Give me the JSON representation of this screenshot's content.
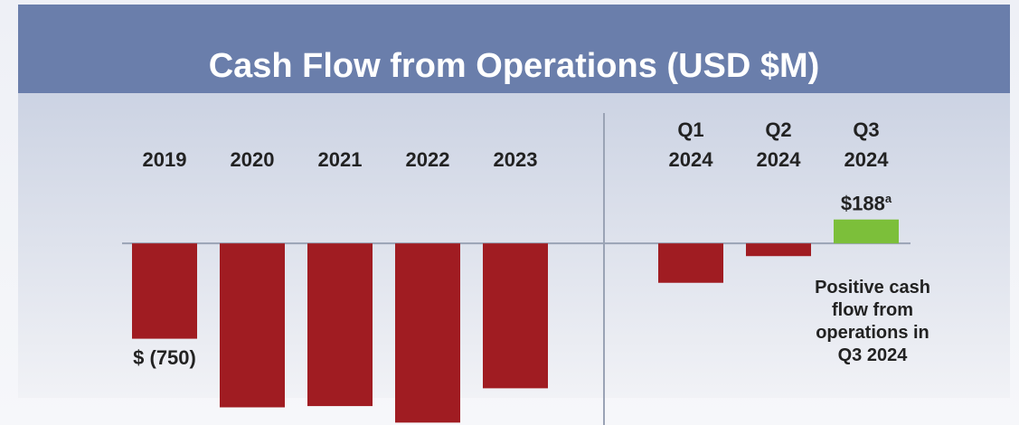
{
  "chart_data": {
    "type": "bar",
    "title": "Cash Flow from Operations (USD $M)",
    "categories": [
      "2019",
      "2020",
      "2021",
      "2022",
      "2023",
      "Q1 2024",
      "Q2 2024",
      "Q3 2024"
    ],
    "values": [
      -750,
      -1290,
      -1280,
      -1410,
      -1140,
      -310,
      -100,
      188
    ],
    "value_labels": [
      "$ (750)",
      null,
      null,
      null,
      null,
      null,
      null,
      "$188"
    ],
    "footnote_marker": "a",
    "colors": [
      "#a01c22",
      "#a01c22",
      "#a01c22",
      "#a01c22",
      "#a01c22",
      "#a01c22",
      "#a01c22",
      "#7cbf3a"
    ],
    "ylim": [
      -1500,
      300
    ],
    "annotation": "Positive cash flow from operations in Q3 2024"
  }
}
